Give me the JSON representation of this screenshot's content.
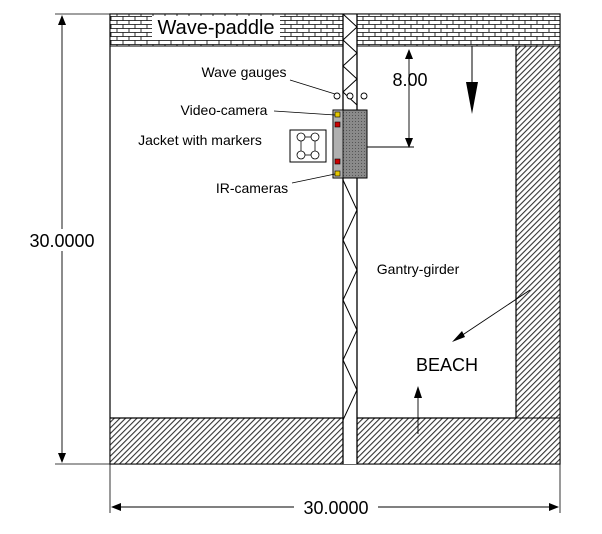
{
  "labels": {
    "wave_paddle": "Wave-paddle",
    "wave_gauges": "Wave gauges",
    "video_camera": "Video-camera",
    "jacket": "Jacket with markers",
    "ir_cameras": "IR-cameras",
    "gantry": "Gantry-girder",
    "beach": "BEACH"
  },
  "dimensions": {
    "height": "30.0000",
    "width": "30.0000",
    "offset": "8.00"
  },
  "colors": {
    "line": "#000000",
    "hatch": "#555555",
    "camera_red": "#cc0000",
    "camera_yellow": "#e6c800"
  }
}
